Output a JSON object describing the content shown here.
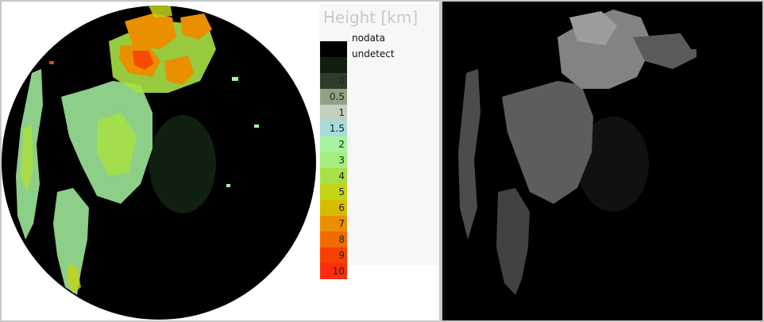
{
  "legend": {
    "title": "Height [km]",
    "special": [
      {
        "label": "nodata",
        "color": "#000000"
      },
      {
        "label": "undetect",
        "color": "#0f2010"
      }
    ],
    "scale": [
      {
        "label": "0",
        "color": "#2e3d2a"
      },
      {
        "label": "0.5",
        "color": "#8fa384"
      },
      {
        "label": "1",
        "color": "#c2cfbe"
      },
      {
        "label": "1.5",
        "color": "#a6dcda"
      },
      {
        "label": "2",
        "color": "#a6f2a0"
      },
      {
        "label": "3",
        "color": "#a4ee7c"
      },
      {
        "label": "4",
        "color": "#a7e044"
      },
      {
        "label": "5",
        "color": "#c4d416"
      },
      {
        "label": "6",
        "color": "#d7bd00"
      },
      {
        "label": "7",
        "color": "#ea8f00"
      },
      {
        "label": "8",
        "color": "#f26a00"
      },
      {
        "label": "9",
        "color": "#f84000"
      },
      {
        "label": "10",
        "color": "#fd2d0d"
      }
    ]
  },
  "map_colors": {
    "background": "#000000",
    "undetect": "#0f2010",
    "low": "#a6f2a0",
    "mid": "#a7e044",
    "high": "#ea8f00",
    "top": "#f84000",
    "quality_gray": "#8a8a8a"
  }
}
